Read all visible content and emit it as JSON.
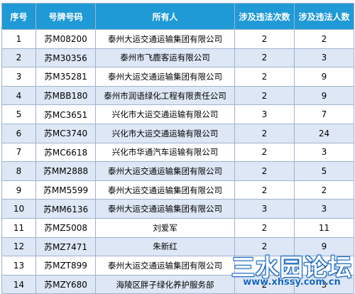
{
  "table": {
    "headers": [
      "序号",
      "号牌号码",
      "所有人",
      "涉及违法次数",
      "涉及违法人数"
    ],
    "rows": [
      [
        "1",
        "苏M08200",
        "泰州大运交通运输集团有限公司",
        "2",
        "2"
      ],
      [
        "2",
        "苏M30356",
        "泰州市飞鹿客运有限公司",
        "2",
        "3"
      ],
      [
        "3",
        "苏M35281",
        "泰州大运交通运输集团有限公司",
        "2",
        "9"
      ],
      [
        "4",
        "苏MBB180",
        "泰州市润语绿化工程有限责任公司",
        "2",
        "9"
      ],
      [
        "5",
        "苏MC3651",
        "兴化市大运交通运输有限公司",
        "3",
        "7"
      ],
      [
        "6",
        "苏MC3740",
        "兴化市大运交通运输有限公司",
        "2",
        "24"
      ],
      [
        "7",
        "苏MC6618",
        "兴化市华通汽车运输有限公司",
        "2",
        "3"
      ],
      [
        "8",
        "苏MM2888",
        "泰州大运交通运输集团有限公司",
        "2",
        "5"
      ],
      [
        "9",
        "苏MM5599",
        "泰州大运交通运输集团有限公司",
        "2",
        "2"
      ],
      [
        "10",
        "苏MM6136",
        "泰州大运交通运输集团有限公司",
        "3",
        "3"
      ],
      [
        "11",
        "苏MZ5008",
        "刘爱军",
        "2",
        "11"
      ],
      [
        "12",
        "苏MZ7471",
        "朱新红",
        "2",
        "9"
      ],
      [
        "13",
        "苏MZT899",
        "泰州大运交通运输集团有限公司",
        "2",
        "3"
      ],
      [
        "14",
        "苏MZY680",
        "海陵区胖子绿化养护服务部",
        "2",
        "3"
      ]
    ]
  },
  "watermark": {
    "title": "三水园论坛",
    "url": "www.xhssy.com.cn"
  },
  "colors": {
    "header_bg": "#1f9ad6",
    "stripe_bg": "#dde7f5",
    "border": "#9fb3d1"
  }
}
